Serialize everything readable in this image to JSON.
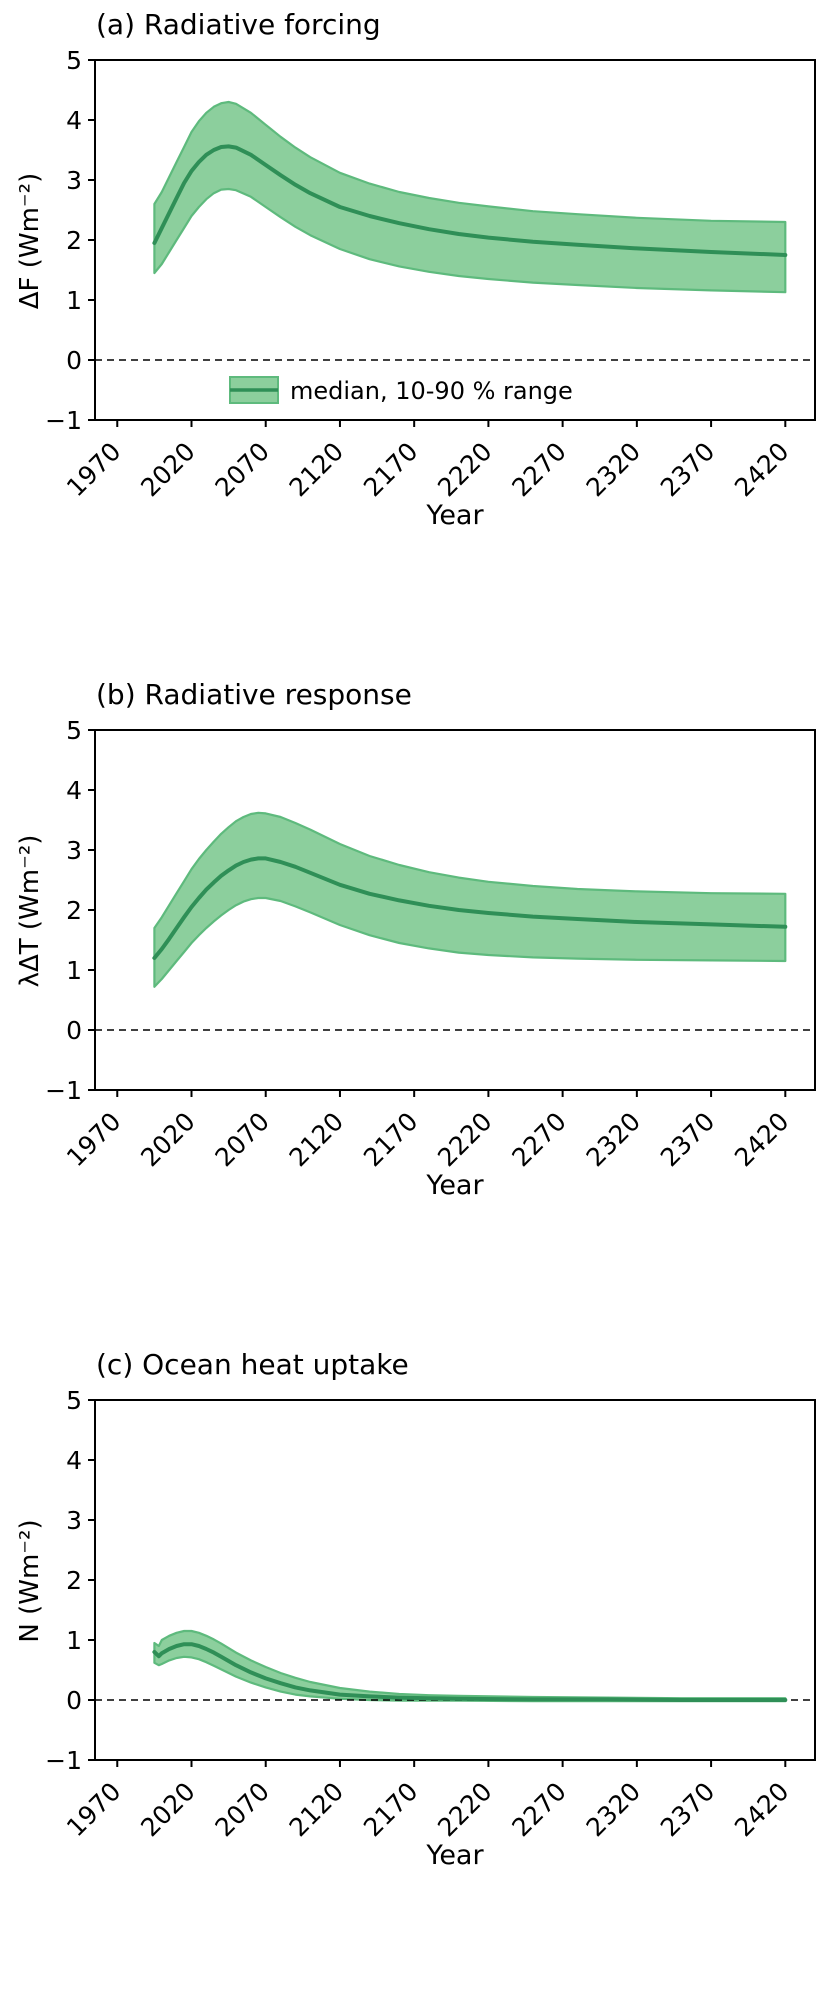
{
  "figure": {
    "background": "#ffffff"
  },
  "colors": {
    "band_fill": "#8ccf9d",
    "band_edge": "#5eba7d",
    "median_line": "#2f8f57",
    "zero_line": "#000000",
    "axis": "#000000"
  },
  "chart_data": [
    {
      "type": "line",
      "title": "(a) Radiative forcing",
      "xlabel": "Year",
      "ylabel": "ΔF (Wm⁻²)",
      "xlim": [
        1955,
        2440
      ],
      "ylim": [
        -1,
        5
      ],
      "xticks": [
        1970,
        2020,
        2070,
        2120,
        2170,
        2220,
        2270,
        2320,
        2370,
        2420
      ],
      "yticks": [
        -1,
        0,
        1,
        2,
        3,
        4,
        5
      ],
      "zero_line": true,
      "legend": {
        "label": "median, 10-90 % range"
      },
      "x": [
        1995,
        2000,
        2005,
        2010,
        2015,
        2020,
        2025,
        2030,
        2035,
        2040,
        2045,
        2050,
        2060,
        2070,
        2080,
        2090,
        2100,
        2120,
        2140,
        2160,
        2180,
        2200,
        2220,
        2250,
        2280,
        2320,
        2370,
        2420
      ],
      "series": [
        {
          "name": "median",
          "values": [
            1.95,
            2.2,
            2.45,
            2.7,
            2.95,
            3.15,
            3.3,
            3.42,
            3.5,
            3.55,
            3.56,
            3.54,
            3.42,
            3.25,
            3.08,
            2.92,
            2.78,
            2.55,
            2.4,
            2.28,
            2.18,
            2.1,
            2.04,
            1.97,
            1.92,
            1.86,
            1.8,
            1.75
          ]
        },
        {
          "name": "p10",
          "values": [
            1.45,
            1.6,
            1.8,
            2.0,
            2.2,
            2.4,
            2.55,
            2.68,
            2.78,
            2.84,
            2.85,
            2.83,
            2.72,
            2.55,
            2.38,
            2.22,
            2.08,
            1.85,
            1.68,
            1.56,
            1.47,
            1.4,
            1.35,
            1.29,
            1.25,
            1.2,
            1.16,
            1.13
          ]
        },
        {
          "name": "p90",
          "values": [
            2.6,
            2.8,
            3.05,
            3.3,
            3.55,
            3.8,
            3.98,
            4.12,
            4.22,
            4.28,
            4.3,
            4.27,
            4.12,
            3.92,
            3.72,
            3.54,
            3.38,
            3.12,
            2.94,
            2.8,
            2.7,
            2.62,
            2.56,
            2.48,
            2.43,
            2.37,
            2.32,
            2.3
          ]
        }
      ]
    },
    {
      "type": "line",
      "title": "(b) Radiative response",
      "xlabel": "Year",
      "ylabel": "λΔT (Wm⁻²)",
      "xlim": [
        1955,
        2440
      ],
      "ylim": [
        -1,
        5
      ],
      "xticks": [
        1970,
        2020,
        2070,
        2120,
        2170,
        2220,
        2270,
        2320,
        2370,
        2420
      ],
      "yticks": [
        -1,
        0,
        1,
        2,
        3,
        4,
        5
      ],
      "zero_line": true,
      "x": [
        1995,
        2000,
        2005,
        2010,
        2015,
        2020,
        2025,
        2030,
        2035,
        2040,
        2045,
        2050,
        2055,
        2060,
        2065,
        2070,
        2080,
        2090,
        2100,
        2120,
        2140,
        2160,
        2180,
        2200,
        2220,
        2250,
        2280,
        2320,
        2370,
        2420
      ],
      "series": [
        {
          "name": "median",
          "values": [
            1.2,
            1.35,
            1.52,
            1.7,
            1.88,
            2.05,
            2.2,
            2.34,
            2.46,
            2.57,
            2.66,
            2.74,
            2.8,
            2.84,
            2.86,
            2.86,
            2.8,
            2.72,
            2.62,
            2.42,
            2.27,
            2.16,
            2.07,
            2.0,
            1.95,
            1.89,
            1.85,
            1.8,
            1.76,
            1.72
          ]
        },
        {
          "name": "p10",
          "values": [
            0.72,
            0.85,
            1.0,
            1.15,
            1.3,
            1.45,
            1.58,
            1.7,
            1.81,
            1.91,
            2.0,
            2.08,
            2.14,
            2.18,
            2.2,
            2.2,
            2.15,
            2.06,
            1.96,
            1.75,
            1.58,
            1.45,
            1.36,
            1.29,
            1.25,
            1.21,
            1.19,
            1.17,
            1.16,
            1.15
          ]
        },
        {
          "name": "p90",
          "values": [
            1.7,
            1.88,
            2.08,
            2.28,
            2.48,
            2.68,
            2.85,
            3.0,
            3.14,
            3.27,
            3.38,
            3.48,
            3.55,
            3.6,
            3.62,
            3.61,
            3.55,
            3.45,
            3.34,
            3.1,
            2.9,
            2.75,
            2.63,
            2.54,
            2.47,
            2.4,
            2.35,
            2.31,
            2.28,
            2.27
          ]
        }
      ]
    },
    {
      "type": "line",
      "title": "(c) Ocean heat uptake",
      "xlabel": "Year",
      "ylabel": "N (Wm⁻²)",
      "xlim": [
        1955,
        2440
      ],
      "ylim": [
        -1,
        5
      ],
      "xticks": [
        1970,
        2020,
        2070,
        2120,
        2170,
        2220,
        2270,
        2320,
        2370,
        2420
      ],
      "yticks": [
        -1,
        0,
        1,
        2,
        3,
        4,
        5
      ],
      "zero_line": true,
      "x": [
        1995,
        1998,
        2000,
        2005,
        2010,
        2015,
        2020,
        2025,
        2030,
        2035,
        2040,
        2050,
        2060,
        2070,
        2080,
        2090,
        2100,
        2120,
        2140,
        2160,
        2180,
        2200,
        2250,
        2300,
        2350,
        2420
      ],
      "series": [
        {
          "name": "median",
          "values": [
            0.8,
            0.73,
            0.78,
            0.85,
            0.9,
            0.93,
            0.93,
            0.9,
            0.85,
            0.79,
            0.72,
            0.58,
            0.46,
            0.36,
            0.28,
            0.21,
            0.16,
            0.09,
            0.06,
            0.04,
            0.03,
            0.02,
            0.01,
            0.01,
            0.0,
            0.0
          ]
        },
        {
          "name": "p10",
          "values": [
            0.62,
            0.58,
            0.6,
            0.66,
            0.7,
            0.72,
            0.71,
            0.68,
            0.63,
            0.57,
            0.51,
            0.39,
            0.29,
            0.21,
            0.14,
            0.09,
            0.06,
            0.02,
            0.0,
            -0.01,
            -0.01,
            -0.01,
            -0.02,
            -0.02,
            -0.02,
            -0.02
          ]
        },
        {
          "name": "p90",
          "values": [
            0.95,
            0.9,
            1.0,
            1.07,
            1.12,
            1.15,
            1.15,
            1.12,
            1.07,
            1.01,
            0.94,
            0.79,
            0.66,
            0.55,
            0.45,
            0.37,
            0.3,
            0.2,
            0.14,
            0.1,
            0.08,
            0.07,
            0.05,
            0.04,
            0.03,
            0.03
          ]
        }
      ]
    }
  ]
}
